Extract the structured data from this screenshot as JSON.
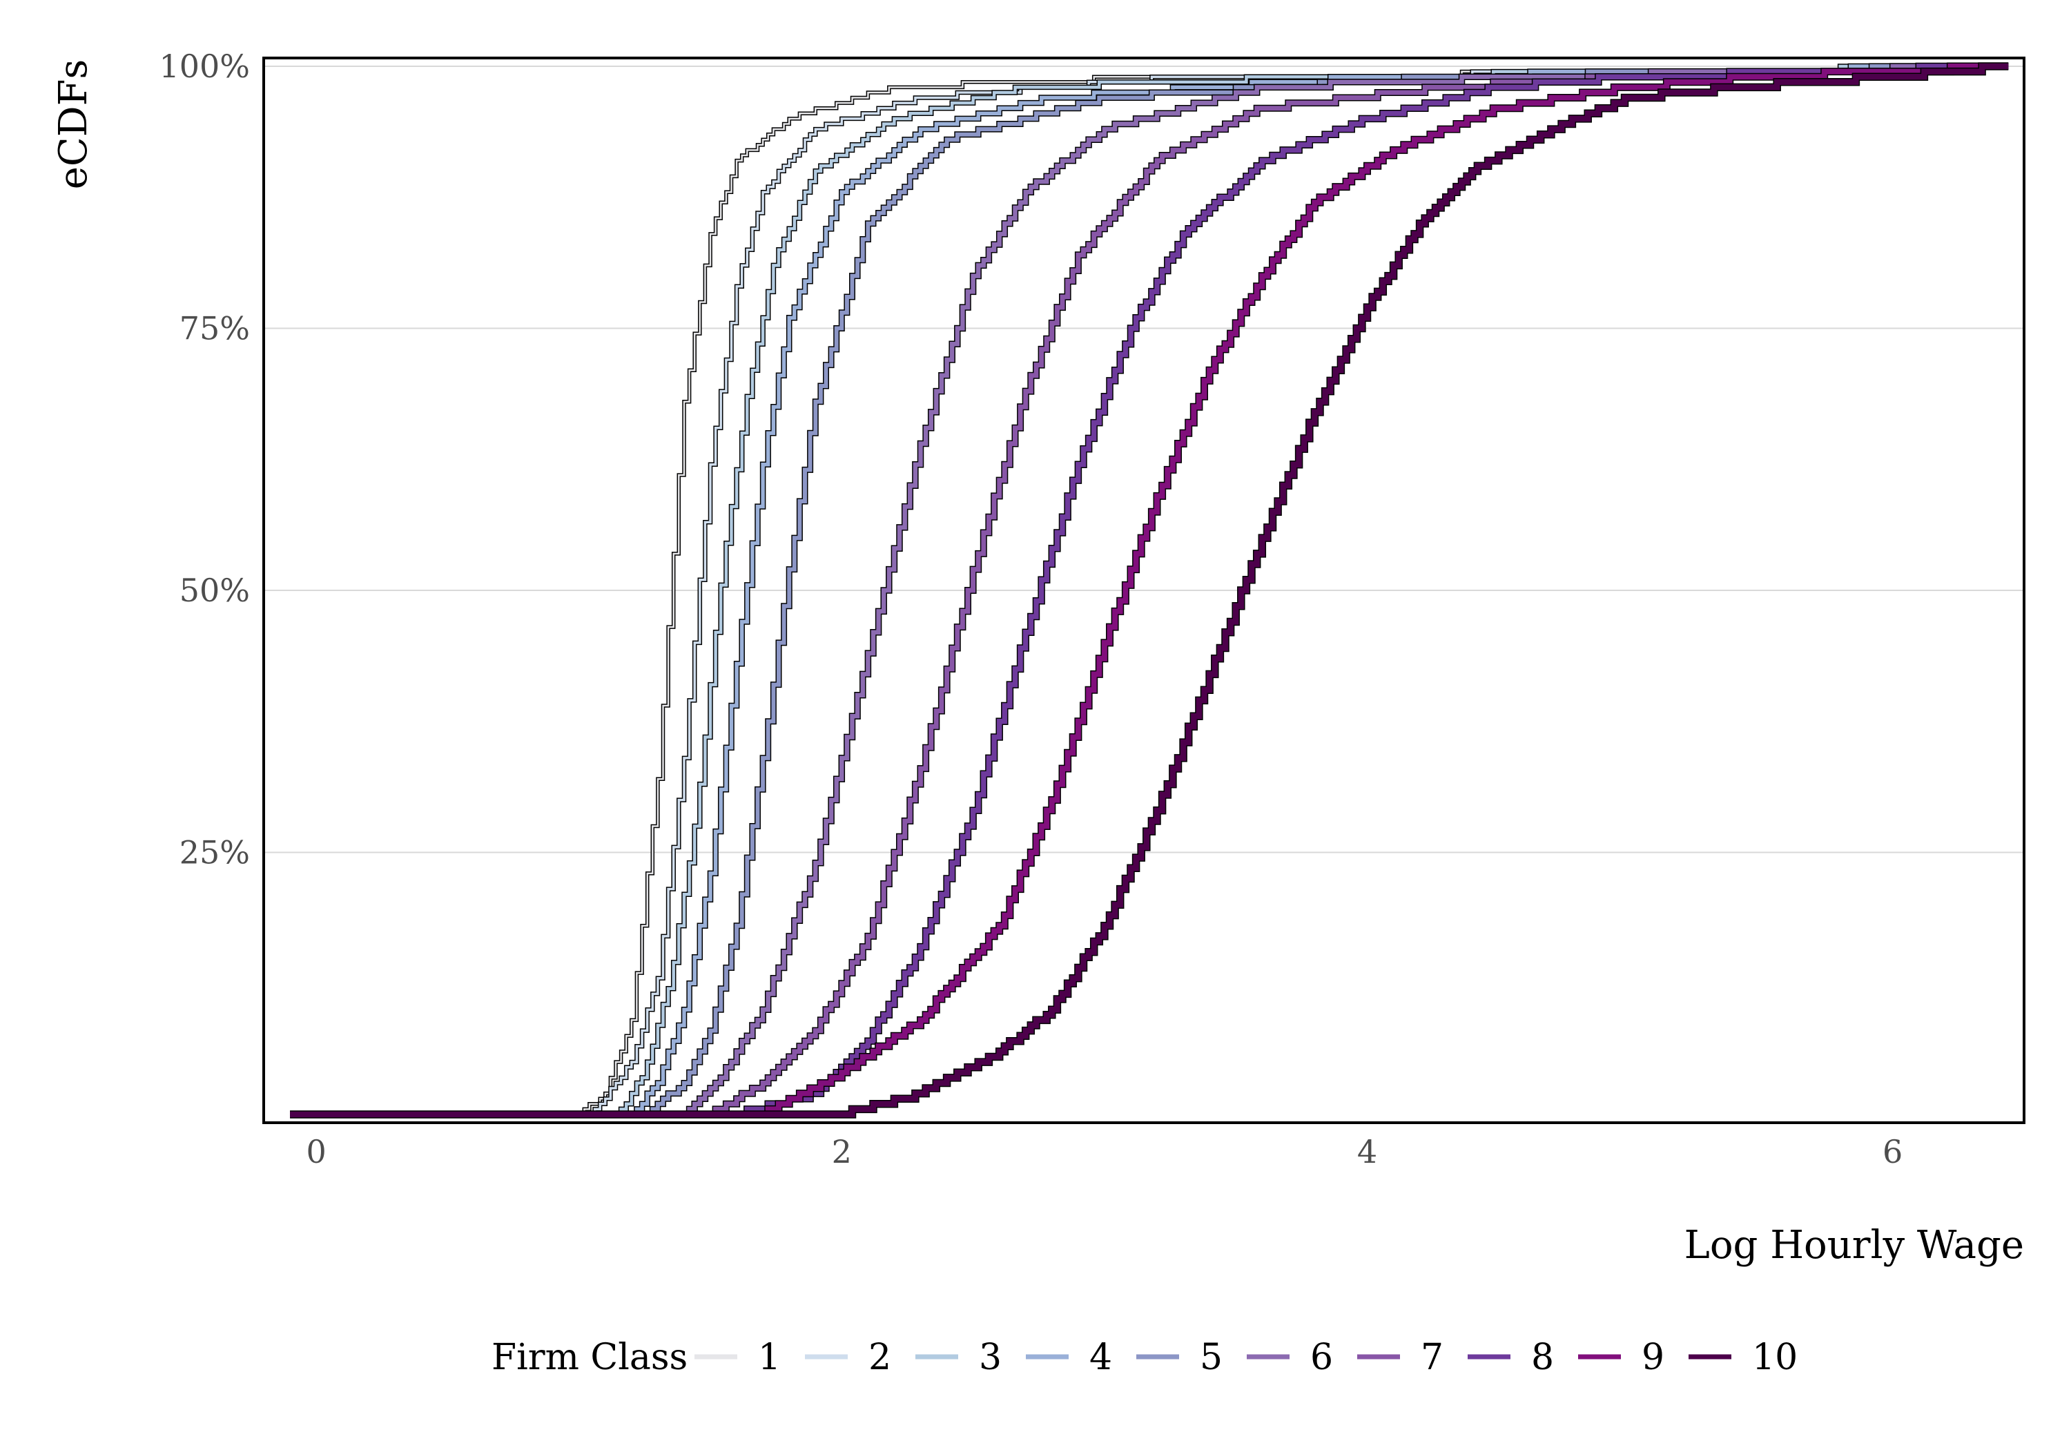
{
  "chart_data": {
    "type": "line",
    "title": "",
    "xlabel": "Log Hourly Wage",
    "ylabel": "eCDFs",
    "xlim": [
      -0.2,
      6.5
    ],
    "ylim": [
      0,
      1
    ],
    "x_ticks": [
      0,
      2,
      4,
      6
    ],
    "x_tick_labels": [
      "0",
      "2",
      "4",
      "6"
    ],
    "y_ticks": [
      0.25,
      0.5,
      0.75,
      1.0
    ],
    "y_tick_labels": [
      "25%",
      "50%",
      "75%",
      "100%"
    ],
    "grid": "horizontal",
    "legend_placement": "bottom",
    "legend_title": "Firm Class",
    "series": [
      {
        "name": "1",
        "color": "#e6e6e9",
        "width": 2.5,
        "points": [
          [
            -0.1,
            0.0
          ],
          [
            1.0,
            0.0
          ],
          [
            1.1,
            0.02
          ],
          [
            1.2,
            0.09
          ],
          [
            1.3,
            0.32
          ],
          [
            1.4,
            0.68
          ],
          [
            1.5,
            0.84
          ],
          [
            1.6,
            0.91
          ],
          [
            1.8,
            0.95
          ],
          [
            2.2,
            0.98
          ],
          [
            3.2,
            0.99
          ],
          [
            5.5,
            0.995
          ],
          [
            6.45,
            1.0
          ]
        ]
      },
      {
        "name": "2",
        "color": "#cfdded",
        "width": 3.5,
        "points": [
          [
            -0.1,
            0.0
          ],
          [
            1.05,
            0.0
          ],
          [
            1.2,
            0.05
          ],
          [
            1.3,
            0.13
          ],
          [
            1.4,
            0.34
          ],
          [
            1.5,
            0.62
          ],
          [
            1.6,
            0.79
          ],
          [
            1.7,
            0.88
          ],
          [
            1.9,
            0.94
          ],
          [
            2.3,
            0.97
          ],
          [
            3.3,
            0.99
          ],
          [
            5.5,
            0.995
          ],
          [
            6.45,
            1.0
          ]
        ]
      },
      {
        "name": "3",
        "color": "#b2cbe1",
        "width": 4.5,
        "points": [
          [
            -0.1,
            0.0
          ],
          [
            1.15,
            0.0
          ],
          [
            1.25,
            0.04
          ],
          [
            1.35,
            0.13
          ],
          [
            1.45,
            0.29
          ],
          [
            1.55,
            0.53
          ],
          [
            1.65,
            0.7
          ],
          [
            1.75,
            0.82
          ],
          [
            1.9,
            0.9
          ],
          [
            2.2,
            0.95
          ],
          [
            2.7,
            0.98
          ],
          [
            3.8,
            0.99
          ],
          [
            6.45,
            1.0
          ]
        ]
      },
      {
        "name": "4",
        "color": "#9ab0d8",
        "width": 5.5,
        "points": [
          [
            -0.1,
            0.0
          ],
          [
            1.2,
            0.0
          ],
          [
            1.3,
            0.03
          ],
          [
            1.4,
            0.1
          ],
          [
            1.5,
            0.23
          ],
          [
            1.6,
            0.43
          ],
          [
            1.7,
            0.62
          ],
          [
            1.8,
            0.76
          ],
          [
            2.0,
            0.88
          ],
          [
            2.3,
            0.94
          ],
          [
            2.8,
            0.97
          ],
          [
            4.0,
            0.99
          ],
          [
            6.45,
            1.0
          ]
        ]
      },
      {
        "name": "5",
        "color": "#8c96c6",
        "width": 6.0,
        "points": [
          [
            -0.1,
            0.0
          ],
          [
            1.25,
            0.0
          ],
          [
            1.4,
            0.03
          ],
          [
            1.5,
            0.08
          ],
          [
            1.6,
            0.18
          ],
          [
            1.7,
            0.34
          ],
          [
            1.8,
            0.52
          ],
          [
            1.9,
            0.68
          ],
          [
            2.1,
            0.85
          ],
          [
            2.4,
            0.93
          ],
          [
            3.0,
            0.97
          ],
          [
            4.3,
            0.99
          ],
          [
            6.45,
            1.0
          ]
        ]
      },
      {
        "name": "6",
        "color": "#8c6bb1",
        "width": 6.5,
        "points": [
          [
            -0.1,
            0.0
          ],
          [
            1.4,
            0.0
          ],
          [
            1.55,
            0.04
          ],
          [
            1.7,
            0.1
          ],
          [
            1.9,
            0.24
          ],
          [
            2.1,
            0.44
          ],
          [
            2.3,
            0.64
          ],
          [
            2.5,
            0.8
          ],
          [
            2.7,
            0.88
          ],
          [
            3.0,
            0.94
          ],
          [
            3.6,
            0.98
          ],
          [
            4.6,
            0.99
          ],
          [
            6.45,
            1.0
          ]
        ]
      },
      {
        "name": "7",
        "color": "#8856a7",
        "width": 7.0,
        "points": [
          [
            -0.1,
            0.0
          ],
          [
            1.5,
            0.0
          ],
          [
            1.7,
            0.03
          ],
          [
            1.9,
            0.08
          ],
          [
            2.1,
            0.17
          ],
          [
            2.3,
            0.33
          ],
          [
            2.5,
            0.52
          ],
          [
            2.7,
            0.69
          ],
          [
            2.9,
            0.82
          ],
          [
            3.2,
            0.91
          ],
          [
            3.6,
            0.96
          ],
          [
            4.3,
            0.98
          ],
          [
            5.0,
            0.99
          ],
          [
            6.45,
            1.0
          ]
        ]
      },
      {
        "name": "8",
        "color": "#6e3a9c",
        "width": 7.5,
        "points": [
          [
            -0.1,
            0.0
          ],
          [
            1.6,
            0.0
          ],
          [
            1.9,
            0.02
          ],
          [
            2.1,
            0.07
          ],
          [
            2.3,
            0.16
          ],
          [
            2.5,
            0.29
          ],
          [
            2.7,
            0.46
          ],
          [
            2.9,
            0.62
          ],
          [
            3.1,
            0.75
          ],
          [
            3.3,
            0.84
          ],
          [
            3.6,
            0.91
          ],
          [
            4.0,
            0.95
          ],
          [
            4.5,
            0.98
          ],
          [
            5.0,
            0.99
          ],
          [
            6.45,
            1.0
          ]
        ]
      },
      {
        "name": "9",
        "color": "#810f7c",
        "width": 8.0,
        "points": [
          [
            -0.1,
            0.0
          ],
          [
            1.7,
            0.0
          ],
          [
            2.0,
            0.04
          ],
          [
            2.3,
            0.09
          ],
          [
            2.6,
            0.18
          ],
          [
            2.8,
            0.3
          ],
          [
            3.0,
            0.45
          ],
          [
            3.2,
            0.59
          ],
          [
            3.4,
            0.71
          ],
          [
            3.6,
            0.8
          ],
          [
            3.8,
            0.87
          ],
          [
            4.1,
            0.92
          ],
          [
            4.5,
            0.96
          ],
          [
            5.0,
            0.98
          ],
          [
            5.5,
            0.99
          ],
          [
            6.45,
            1.0
          ]
        ]
      },
      {
        "name": "10",
        "color": "#4d004b",
        "width": 8.5,
        "points": [
          [
            -0.1,
            0.0
          ],
          [
            2.0,
            0.0
          ],
          [
            2.3,
            0.02
          ],
          [
            2.6,
            0.06
          ],
          [
            2.8,
            0.1
          ],
          [
            3.0,
            0.18
          ],
          [
            3.2,
            0.29
          ],
          [
            3.4,
            0.42
          ],
          [
            3.6,
            0.55
          ],
          [
            3.8,
            0.67
          ],
          [
            4.0,
            0.77
          ],
          [
            4.2,
            0.85
          ],
          [
            4.4,
            0.9
          ],
          [
            4.7,
            0.94
          ],
          [
            5.0,
            0.97
          ],
          [
            5.4,
            0.98
          ],
          [
            6.0,
            0.99
          ],
          [
            6.45,
            1.0
          ]
        ]
      }
    ]
  }
}
